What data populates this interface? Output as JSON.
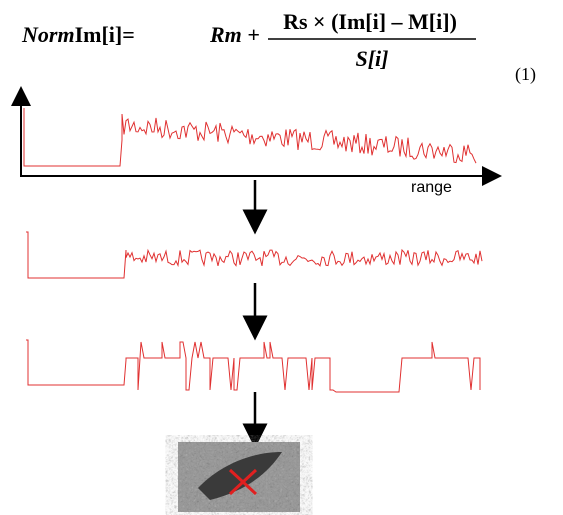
{
  "formula": {
    "lhs_italic": "Norm",
    "lhs": "Im[i]=",
    "rm": "Rm +",
    "numerator": "Rs × (Im[i] – M[i])",
    "denominator": "S[i]"
  },
  "equation_number": "(1)",
  "axis_label": "range"
}
